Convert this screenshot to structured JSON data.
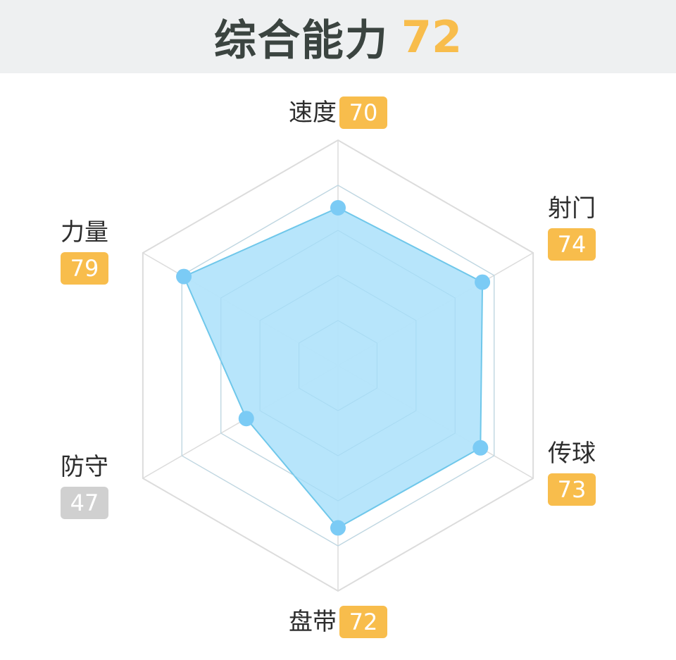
{
  "header": {
    "title": "综合能力",
    "score": "72"
  },
  "colors": {
    "badge_high": "#f8bd4c",
    "badge_low": "#d0d0d0",
    "fill": "#b3e4fb",
    "stroke": "#6fc7ea",
    "point": "#7bcbf5",
    "grid": "#dcdcdc"
  },
  "chart_data": {
    "type": "radar",
    "title": "综合能力",
    "overall": 72,
    "range": [
      0,
      100
    ],
    "grid_levels": 5,
    "categories": [
      "速度",
      "射门",
      "传球",
      "盘带",
      "防守",
      "力量"
    ],
    "values": [
      70,
      74,
      73,
      72,
      47,
      79
    ],
    "labels": [
      {
        "name": "速度",
        "value": "70",
        "level": "high"
      },
      {
        "name": "射门",
        "value": "74",
        "level": "high"
      },
      {
        "name": "传球",
        "value": "73",
        "level": "high"
      },
      {
        "name": "盘带",
        "value": "72",
        "level": "high"
      },
      {
        "name": "防守",
        "value": "47",
        "level": "low"
      },
      {
        "name": "力量",
        "value": "79",
        "level": "high"
      }
    ]
  }
}
